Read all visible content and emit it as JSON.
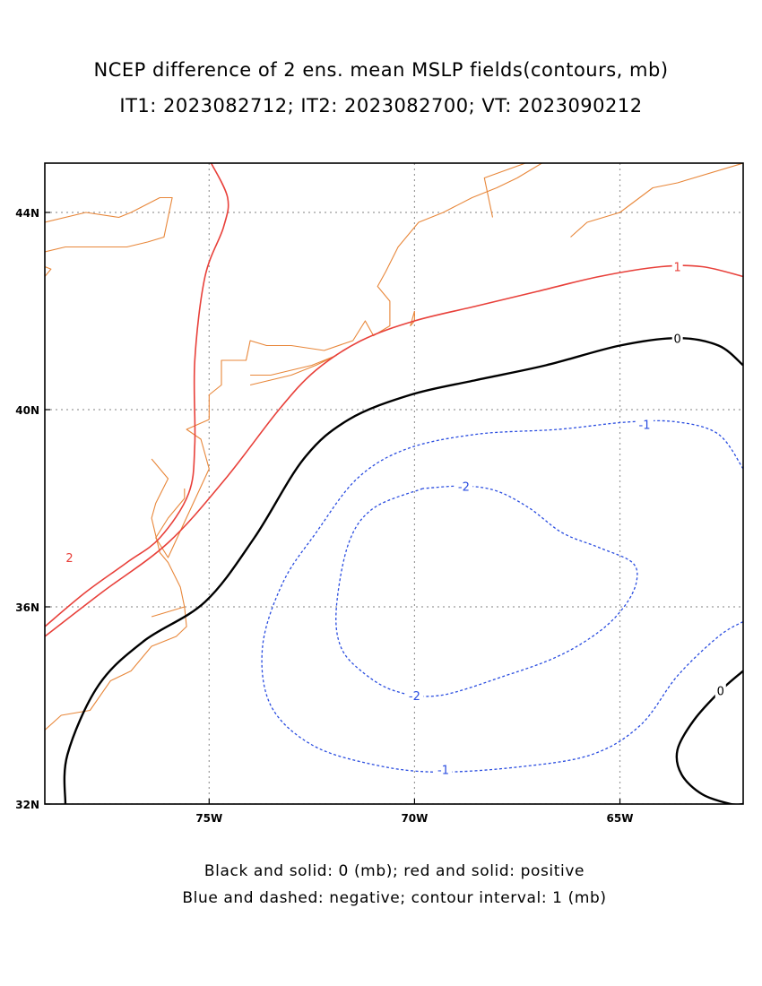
{
  "title": {
    "line1": "NCEP difference of 2 ens. mean MSLP fields(contours, mb)",
    "line2": "IT1: 2023082712; IT2: 2023082700; VT: 2023090212"
  },
  "caption": {
    "line1": "Black and solid: 0 (mb); red and solid: positive",
    "line2": "Blue and dashed: negative; contour interval: 1 (mb)"
  },
  "map": {
    "lon_range": [
      -79,
      -62
    ],
    "lat_range": [
      32,
      45
    ],
    "grid": true,
    "x_ticks": [
      {
        "value": -75,
        "label": "75W"
      },
      {
        "value": -70,
        "label": "70W"
      },
      {
        "value": -65,
        "label": "65W"
      }
    ],
    "y_ticks": [
      {
        "value": 32,
        "label": "32N"
      },
      {
        "value": 36,
        "label": "36N"
      },
      {
        "value": 40,
        "label": "40N"
      },
      {
        "value": 44,
        "label": "44N"
      }
    ],
    "colors": {
      "zero": "#000000",
      "positive": "#e8403a",
      "negative": "#2a4de0",
      "coast": "#e8873a",
      "grid": "#9a9a9a"
    }
  },
  "contours": [
    {
      "level": "2",
      "color": "positive",
      "dashed": false,
      "labels": [
        {
          "text": "2",
          "lon": -78.4,
          "lat": 37.0
        }
      ],
      "points": [
        [
          -79.0,
          35.6
        ],
        [
          -78.0,
          36.3
        ],
        [
          -77.0,
          36.9
        ],
        [
          -76.2,
          37.4
        ],
        [
          -75.5,
          38.3
        ],
        [
          -75.35,
          39.3
        ],
        [
          -75.35,
          41.0
        ],
        [
          -75.1,
          42.7
        ],
        [
          -74.65,
          43.7
        ],
        [
          -74.55,
          44.3
        ],
        [
          -74.95,
          45.0
        ]
      ]
    },
    {
      "level": "1",
      "color": "positive",
      "dashed": false,
      "labels": [
        {
          "text": "1",
          "lon": -63.6,
          "lat": 42.9
        }
      ],
      "points": [
        [
          -79.0,
          35.4
        ],
        [
          -77.6,
          36.3
        ],
        [
          -76.0,
          37.3
        ],
        [
          -74.6,
          38.6
        ],
        [
          -73.3,
          40.0
        ],
        [
          -72.4,
          40.8
        ],
        [
          -71.3,
          41.4
        ],
        [
          -70.0,
          41.8
        ],
        [
          -68.5,
          42.1
        ],
        [
          -67.0,
          42.4
        ],
        [
          -65.5,
          42.7
        ],
        [
          -64.0,
          42.9
        ],
        [
          -63.0,
          42.9
        ],
        [
          -62.0,
          42.7
        ]
      ]
    },
    {
      "level": "0",
      "color": "zero",
      "dashed": false,
      "labels": [
        {
          "text": "0",
          "lon": -63.6,
          "lat": 41.45
        }
      ],
      "points": [
        [
          -78.5,
          32.0
        ],
        [
          -78.45,
          33.0
        ],
        [
          -77.7,
          34.4
        ],
        [
          -76.6,
          35.3
        ],
        [
          -75.1,
          36.1
        ],
        [
          -73.9,
          37.4
        ],
        [
          -72.7,
          39.0
        ],
        [
          -71.6,
          39.8
        ],
        [
          -70.1,
          40.3
        ],
        [
          -68.5,
          40.6
        ],
        [
          -66.8,
          40.9
        ],
        [
          -65.0,
          41.3
        ],
        [
          -63.6,
          41.45
        ],
        [
          -62.6,
          41.3
        ],
        [
          -62.0,
          40.9
        ]
      ]
    },
    {
      "level": "0",
      "color": "zero",
      "dashed": false,
      "labels": [
        {
          "text": "0",
          "lon": -62.55,
          "lat": 34.3
        }
      ],
      "points": [
        [
          -62.0,
          34.7
        ],
        [
          -62.55,
          34.3
        ],
        [
          -63.2,
          33.7
        ],
        [
          -63.6,
          33.1
        ],
        [
          -63.5,
          32.6
        ],
        [
          -63.0,
          32.2
        ],
        [
          -62.3,
          32.0
        ],
        [
          -62.0,
          32.0
        ]
      ]
    },
    {
      "level": "-1",
      "color": "negative",
      "dashed": true,
      "labels": [
        {
          "text": "-1",
          "lon": -64.4,
          "lat": 39.7
        },
        {
          "text": "-1",
          "lon": -69.3,
          "lat": 32.7
        }
      ],
      "points": [
        [
          -62.0,
          38.8
        ],
        [
          -62.6,
          39.5
        ],
        [
          -63.6,
          39.75
        ],
        [
          -64.8,
          39.75
        ],
        [
          -66.5,
          39.6
        ],
        [
          -68.5,
          39.5
        ],
        [
          -70.2,
          39.2
        ],
        [
          -71.4,
          38.6
        ],
        [
          -72.4,
          37.5
        ],
        [
          -73.2,
          36.5
        ],
        [
          -73.7,
          35.2
        ],
        [
          -73.5,
          34.0
        ],
        [
          -72.5,
          33.2
        ],
        [
          -71.0,
          32.8
        ],
        [
          -69.5,
          32.65
        ],
        [
          -67.5,
          32.75
        ],
        [
          -65.7,
          33.0
        ],
        [
          -64.5,
          33.6
        ],
        [
          -63.6,
          34.6
        ],
        [
          -62.6,
          35.4
        ],
        [
          -62.0,
          35.7
        ]
      ]
    },
    {
      "level": "-2",
      "color": "negative",
      "dashed": true,
      "labels": [
        {
          "text": "-2",
          "lon": -68.8,
          "lat": 38.45
        },
        {
          "text": "-2",
          "lon": -70.0,
          "lat": 34.2
        }
      ],
      "points": [
        [
          -69.8,
          38.4
        ],
        [
          -71.0,
          38.0
        ],
        [
          -71.6,
          37.3
        ],
        [
          -71.9,
          36.0
        ],
        [
          -71.8,
          35.2
        ],
        [
          -71.3,
          34.7
        ],
        [
          -70.5,
          34.3
        ],
        [
          -69.4,
          34.2
        ],
        [
          -67.8,
          34.6
        ],
        [
          -66.5,
          35.0
        ],
        [
          -65.5,
          35.5
        ],
        [
          -64.9,
          36.0
        ],
        [
          -64.6,
          36.5
        ],
        [
          -64.7,
          36.9
        ],
        [
          -65.5,
          37.2
        ],
        [
          -66.4,
          37.5
        ],
        [
          -67.2,
          38.0
        ],
        [
          -68.0,
          38.35
        ],
        [
          -68.8,
          38.45
        ],
        [
          -69.8,
          38.4
        ]
      ]
    }
  ],
  "coastlines": [
    [
      [
        -79.0,
        43.8
      ],
      [
        -78.0,
        44.0
      ],
      [
        -77.2,
        43.9
      ],
      [
        -76.9,
        44.0
      ],
      [
        -76.2,
        44.3
      ],
      [
        -75.9,
        44.3
      ],
      [
        -76.0,
        43.9
      ],
      [
        -76.1,
        43.5
      ],
      [
        -76.5,
        43.4
      ],
      [
        -77.0,
        43.3
      ],
      [
        -77.7,
        43.3
      ],
      [
        -78.5,
        43.3
      ],
      [
        -79.0,
        43.2
      ]
    ],
    [
      [
        -79.0,
        42.9
      ],
      [
        -78.85,
        42.85
      ],
      [
        -79.0,
        42.7
      ]
    ],
    [
      [
        -75.0,
        39.8
      ],
      [
        -75.0,
        40.3
      ],
      [
        -74.7,
        40.5
      ],
      [
        -74.7,
        41.0
      ],
      [
        -74.1,
        41.0
      ],
      [
        -74.0,
        41.4
      ],
      [
        -73.6,
        41.3
      ],
      [
        -73.0,
        41.3
      ],
      [
        -72.2,
        41.2
      ],
      [
        -71.5,
        41.4
      ],
      [
        -71.2,
        41.8
      ],
      [
        -71.0,
        41.5
      ],
      [
        -70.6,
        41.7
      ],
      [
        -70.6,
        42.2
      ],
      [
        -70.9,
        42.5
      ],
      [
        -70.7,
        42.8
      ],
      [
        -70.4,
        43.3
      ],
      [
        -69.9,
        43.8
      ],
      [
        -69.3,
        44.0
      ],
      [
        -68.6,
        44.3
      ],
      [
        -68.0,
        44.5
      ],
      [
        -67.5,
        44.7
      ],
      [
        -66.9,
        45.0
      ]
    ],
    [
      [
        -70.0,
        42.0
      ],
      [
        -70.1,
        41.7
      ],
      [
        -70.0,
        41.8
      ],
      [
        -70.0,
        42.0
      ]
    ],
    [
      [
        -74.0,
        40.5
      ],
      [
        -73.0,
        40.7
      ],
      [
        -72.4,
        40.9
      ],
      [
        -71.9,
        41.1
      ],
      [
        -72.5,
        40.9
      ],
      [
        -73.5,
        40.7
      ],
      [
        -74.0,
        40.7
      ]
    ],
    [
      [
        -76.4,
        39.0
      ],
      [
        -76.0,
        38.6
      ],
      [
        -76.3,
        38.1
      ],
      [
        -76.4,
        37.8
      ],
      [
        -76.2,
        37.1
      ],
      [
        -76.0,
        36.9
      ],
      [
        -75.7,
        36.4
      ],
      [
        -75.6,
        36.0
      ],
      [
        -75.55,
        35.6
      ],
      [
        -75.8,
        35.4
      ],
      [
        -76.4,
        35.2
      ],
      [
        -76.9,
        34.7
      ],
      [
        -77.4,
        34.5
      ],
      [
        -77.9,
        33.9
      ],
      [
        -78.6,
        33.8
      ],
      [
        -79.0,
        33.5
      ]
    ],
    [
      [
        -76.4,
        35.8
      ],
      [
        -76.0,
        35.9
      ],
      [
        -75.6,
        36.0
      ]
    ],
    [
      [
        -75.6,
        38.4
      ],
      [
        -75.6,
        38.2
      ],
      [
        -76.0,
        37.8
      ],
      [
        -76.3,
        37.4
      ],
      [
        -76.0,
        37.0
      ],
      [
        -75.0,
        38.8
      ],
      [
        -75.2,
        39.4
      ],
      [
        -75.55,
        39.6
      ],
      [
        -75.0,
        39.8
      ]
    ],
    [
      [
        -66.2,
        43.5
      ],
      [
        -65.8,
        43.8
      ],
      [
        -65.0,
        44.0
      ],
      [
        -64.2,
        44.5
      ],
      [
        -63.6,
        44.6
      ],
      [
        -62.0,
        45.0
      ]
    ],
    [
      [
        -68.1,
        43.9
      ],
      [
        -68.3,
        44.7
      ],
      [
        -67.3,
        45.0
      ]
    ]
  ]
}
